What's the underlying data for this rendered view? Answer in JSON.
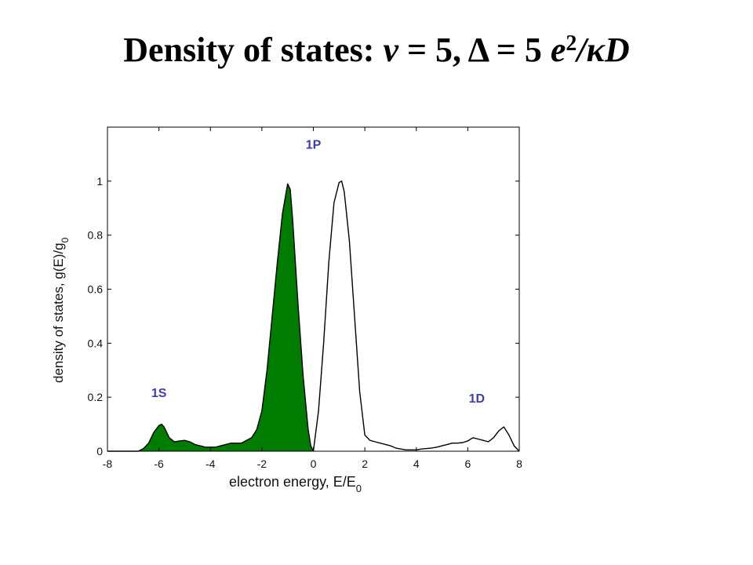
{
  "title": {
    "prefix": "Density of states: ",
    "nu_symbol": "ν",
    "eq1": " = 5, Δ = 5 ",
    "e_symbol": "e",
    "exponent": "2",
    "tail": "/κD"
  },
  "chart_data": {
    "type": "area",
    "xlabel": "electron energy,  E/E",
    "xlabel_sub": "0",
    "ylabel": "density of states,  g(E)/g",
    "ylabel_sub": "0",
    "xlim": [
      -8,
      8
    ],
    "ylim": [
      0,
      1.2
    ],
    "xticks": [
      -8,
      -6,
      -4,
      -2,
      0,
      2,
      4,
      6,
      8
    ],
    "yticks": [
      0,
      0.2,
      0.4,
      0.6,
      0.8,
      1
    ],
    "grid": false,
    "colors": {
      "filled": "#007d00",
      "label": "#3c3cb4",
      "line": "#000000"
    },
    "annotations": [
      {
        "text": "1S",
        "x": -6.0,
        "y": 0.2
      },
      {
        "text": "1P",
        "x": 0.0,
        "y": 1.12
      },
      {
        "text": "1D",
        "x": 6.35,
        "y": 0.18
      }
    ],
    "series": [
      {
        "fill": "filled",
        "x": [
          -7.0,
          -6.8,
          -6.6,
          -6.4,
          -6.2,
          -6.0,
          -5.9,
          -5.8,
          -5.7,
          -5.6,
          -5.4,
          -5.2,
          -5.0,
          -4.8,
          -4.6,
          -4.4,
          -4.2,
          -4.0,
          -3.8,
          -3.6,
          -3.4,
          -3.2,
          -3.0,
          -2.8,
          -2.6,
          -2.4,
          -2.2,
          -2.0,
          -1.8,
          -1.6,
          -1.4,
          -1.2,
          -1.0,
          -0.9,
          -0.8,
          -0.6,
          -0.4,
          -0.2,
          -0.1,
          0.0
        ],
        "y": [
          0.0,
          0.0,
          0.01,
          0.03,
          0.07,
          0.095,
          0.1,
          0.09,
          0.07,
          0.05,
          0.035,
          0.038,
          0.04,
          0.035,
          0.025,
          0.02,
          0.015,
          0.015,
          0.015,
          0.02,
          0.025,
          0.03,
          0.03,
          0.03,
          0.04,
          0.05,
          0.08,
          0.15,
          0.3,
          0.5,
          0.7,
          0.88,
          0.99,
          0.97,
          0.85,
          0.55,
          0.28,
          0.08,
          0.02,
          0.0
        ]
      },
      {
        "fill": "none",
        "x": [
          0.0,
          0.2,
          0.4,
          0.6,
          0.8,
          1.0,
          1.1,
          1.2,
          1.4,
          1.6,
          1.8,
          2.0,
          2.2,
          2.4,
          2.6,
          2.8,
          3.0,
          3.2,
          3.4,
          3.6,
          3.8,
          4.0,
          4.2,
          4.4,
          4.6,
          4.8,
          5.0,
          5.2,
          5.4,
          5.6,
          5.8,
          6.0,
          6.2,
          6.4,
          6.6,
          6.8,
          7.0,
          7.2,
          7.4,
          7.6,
          7.8,
          8.0
        ],
        "y": [
          0.0,
          0.15,
          0.4,
          0.7,
          0.92,
          0.995,
          1.0,
          0.96,
          0.78,
          0.5,
          0.22,
          0.06,
          0.04,
          0.035,
          0.03,
          0.025,
          0.02,
          0.012,
          0.008,
          0.005,
          0.005,
          0.005,
          0.008,
          0.01,
          0.012,
          0.015,
          0.02,
          0.025,
          0.03,
          0.03,
          0.032,
          0.038,
          0.05,
          0.045,
          0.04,
          0.035,
          0.05,
          0.075,
          0.09,
          0.06,
          0.02,
          0.0
        ]
      }
    ]
  }
}
